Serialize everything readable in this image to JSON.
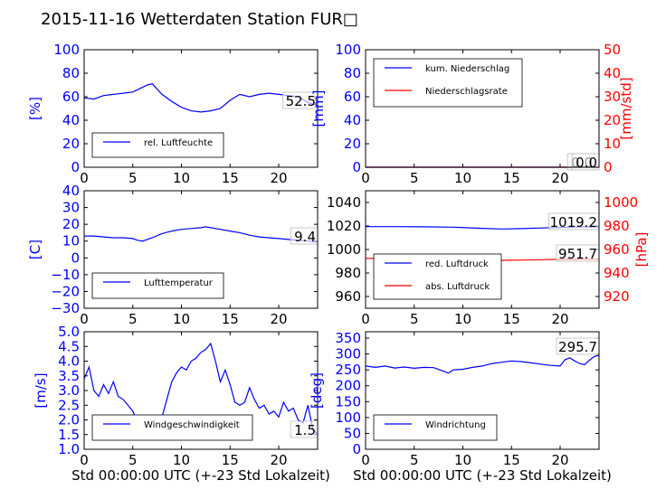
{
  "title": "2015-11-16 Wetterdaten Station FUR□",
  "colors": {
    "blue": "#0000ff",
    "red": "#ff0000",
    "black": "#000000",
    "lightblue": "#8080ff"
  },
  "xlabel": "Std 00:00:00 UTC (+-23 Std Lokalzeit)",
  "chart_data": [
    {
      "type": "line",
      "ylabel": "[%]",
      "xlim": [
        0,
        24
      ],
      "ylim": [
        0,
        100
      ],
      "xticks": [
        "0",
        "5",
        "10",
        "15",
        "20"
      ],
      "yticks": [
        "0",
        "20",
        "40",
        "60",
        "80",
        "100"
      ],
      "series": [
        {
          "name": "rel. Luftfeuchte",
          "color": "#0000ff",
          "x": [
            0,
            1,
            2,
            3,
            4,
            5,
            6,
            6.5,
            7,
            8,
            9,
            10,
            11,
            12,
            13,
            14,
            15,
            16,
            17,
            18,
            19,
            20,
            21,
            22,
            23,
            24
          ],
          "y": [
            59,
            58,
            61,
            62,
            63,
            64,
            68,
            70,
            71,
            62,
            56,
            51,
            48,
            47,
            48,
            50,
            57,
            62,
            60,
            62,
            63,
            62,
            61,
            60,
            55,
            52.5
          ]
        }
      ],
      "value_label": "52.5"
    },
    {
      "type": "line",
      "ylabel": "[mm]",
      "ylabel2": "[mm/std]",
      "xlim": [
        0,
        24
      ],
      "ylim": [
        0,
        100
      ],
      "ylim2": [
        0,
        50
      ],
      "xticks": [
        "0",
        "5",
        "10",
        "15",
        "20"
      ],
      "yticks": [
        "0",
        "20",
        "40",
        "60",
        "80",
        "100"
      ],
      "yticks2": [
        "0",
        "10",
        "20",
        "30",
        "40",
        "50"
      ],
      "series": [
        {
          "name": "kum. Niederschlag",
          "color": "#0000ff",
          "axis": "left",
          "x": [
            0,
            24
          ],
          "y": [
            0,
            0
          ]
        },
        {
          "name": "Niederschlagsrate",
          "color": "#ff0000",
          "axis": "right",
          "x": [
            0,
            24
          ],
          "y": [
            0,
            0
          ]
        }
      ],
      "value_label": "0.0",
      "value_label2": "0.0"
    },
    {
      "type": "line",
      "ylabel": "[C]",
      "xlim": [
        0,
        24
      ],
      "ylim": [
        -30,
        40
      ],
      "xticks": [
        "0",
        "5",
        "10",
        "15",
        "20"
      ],
      "yticks": [
        "−30",
        "−20",
        "−10",
        "0",
        "10",
        "20",
        "30",
        "40"
      ],
      "series": [
        {
          "name": "Lufttemperatur",
          "color": "#0000ff",
          "x": [
            0,
            1,
            2,
            3,
            4,
            5,
            5.5,
            6,
            7,
            8,
            9,
            10,
            11,
            12,
            12.5,
            13,
            14,
            15,
            16,
            17,
            18,
            19,
            20,
            21,
            22,
            23,
            24
          ],
          "y": [
            13,
            13,
            12.5,
            12,
            12,
            11.5,
            10.5,
            10,
            12,
            14.5,
            16,
            17,
            17.5,
            18,
            18.5,
            18,
            17,
            16,
            15,
            13.5,
            12.5,
            12,
            11.5,
            11,
            10.5,
            10,
            9.4
          ]
        }
      ],
      "value_label": "9.4"
    },
    {
      "type": "line",
      "ylabel2": "[hPa]",
      "xlim": [
        0,
        24
      ],
      "ylim": [
        950,
        1050
      ],
      "ylim2": [
        910,
        1010
      ],
      "xticks": [
        "0",
        "5",
        "10",
        "15",
        "20"
      ],
      "yticks": [
        "960",
        "980",
        "1000",
        "1020",
        "1040"
      ],
      "yticks2": [
        "920",
        "940",
        "960",
        "980",
        "1000"
      ],
      "series": [
        {
          "name": "red. Luftdruck",
          "color": "#0000ff",
          "axis": "left",
          "x": [
            0,
            3,
            6,
            9,
            12,
            14,
            16,
            18,
            20,
            22,
            24
          ],
          "y": [
            1019.5,
            1019.5,
            1019.3,
            1019,
            1018,
            1017.5,
            1017.8,
            1018.3,
            1018.8,
            1019.2,
            1019.2
          ]
        },
        {
          "name": "abs. Luftdruck",
          "color": "#ff0000",
          "axis": "right",
          "x": [
            0,
            3,
            6,
            9,
            12,
            14,
            16,
            18,
            20,
            22,
            24
          ],
          "y": [
            952.5,
            952.4,
            952.2,
            952,
            951.2,
            950.8,
            951,
            951.3,
            951.6,
            951.8,
            951.7
          ]
        }
      ],
      "value_label": "1019.2",
      "value_label2": "951.7"
    },
    {
      "type": "line",
      "ylabel": "[m/s]",
      "xlim": [
        0,
        24
      ],
      "ylim": [
        1.0,
        5.0
      ],
      "xticks": [
        "0",
        "5",
        "10",
        "15",
        "20"
      ],
      "yticks": [
        "1.0",
        "1.5",
        "2.0",
        "2.5",
        "3.0",
        "3.5",
        "4.0",
        "4.5",
        "5.0"
      ],
      "series": [
        {
          "name": "Windgeschwindigkeit",
          "color": "#0000ff",
          "x": [
            0,
            0.5,
            1,
            1.5,
            2,
            2.5,
            3,
            3.5,
            4,
            4.5,
            5,
            5.5,
            6,
            6.5,
            7,
            7.5,
            8,
            8.5,
            9,
            9.5,
            10,
            10.5,
            11,
            11.5,
            12,
            12.5,
            13,
            13.5,
            14,
            14.5,
            15,
            15.5,
            16,
            16.5,
            17,
            17.5,
            18,
            18.5,
            19,
            19.5,
            20,
            20.5,
            21,
            21.5,
            22,
            22.5,
            23,
            23.5,
            24
          ],
          "y": [
            3.4,
            3.8,
            3.0,
            2.8,
            3.2,
            2.9,
            3.3,
            2.8,
            2.7,
            2.5,
            2.3,
            1.9,
            1.7,
            1.5,
            1.6,
            1.9,
            2.1,
            2.7,
            3.3,
            3.6,
            3.8,
            3.7,
            4.0,
            4.1,
            4.3,
            4.4,
            4.6,
            4.0,
            3.3,
            3.7,
            3.2,
            2.6,
            2.5,
            2.6,
            3.1,
            2.7,
            2.4,
            2.5,
            2.2,
            2.3,
            2.1,
            2.6,
            2.3,
            2.4,
            2.0,
            1.9,
            2.5,
            1.7,
            1.5
          ]
        }
      ],
      "value_label": "1.5"
    },
    {
      "type": "line",
      "ylabel": "[deg]",
      "xlim": [
        0,
        24
      ],
      "ylim": [
        0,
        370
      ],
      "xticks": [
        "0",
        "5",
        "10",
        "15",
        "20"
      ],
      "yticks": [
        "0",
        "50",
        "100",
        "150",
        "200",
        "250",
        "300",
        "350"
      ],
      "series": [
        {
          "name": "Windrichtung",
          "color": "#0000ff",
          "x": [
            0,
            1,
            2,
            3,
            4,
            5,
            6,
            7,
            8,
            8.5,
            9,
            10,
            11,
            12,
            13,
            14,
            15,
            16,
            17,
            18,
            19,
            20,
            20.5,
            21,
            21.5,
            22,
            22.5,
            23,
            23.5,
            24
          ],
          "y": [
            262,
            258,
            262,
            256,
            259,
            255,
            258,
            257,
            246,
            240,
            250,
            252,
            258,
            262,
            270,
            274,
            278,
            276,
            272,
            268,
            264,
            262,
            282,
            288,
            278,
            270,
            266,
            280,
            292,
            296
          ]
        }
      ],
      "value_label": "295.7"
    }
  ]
}
